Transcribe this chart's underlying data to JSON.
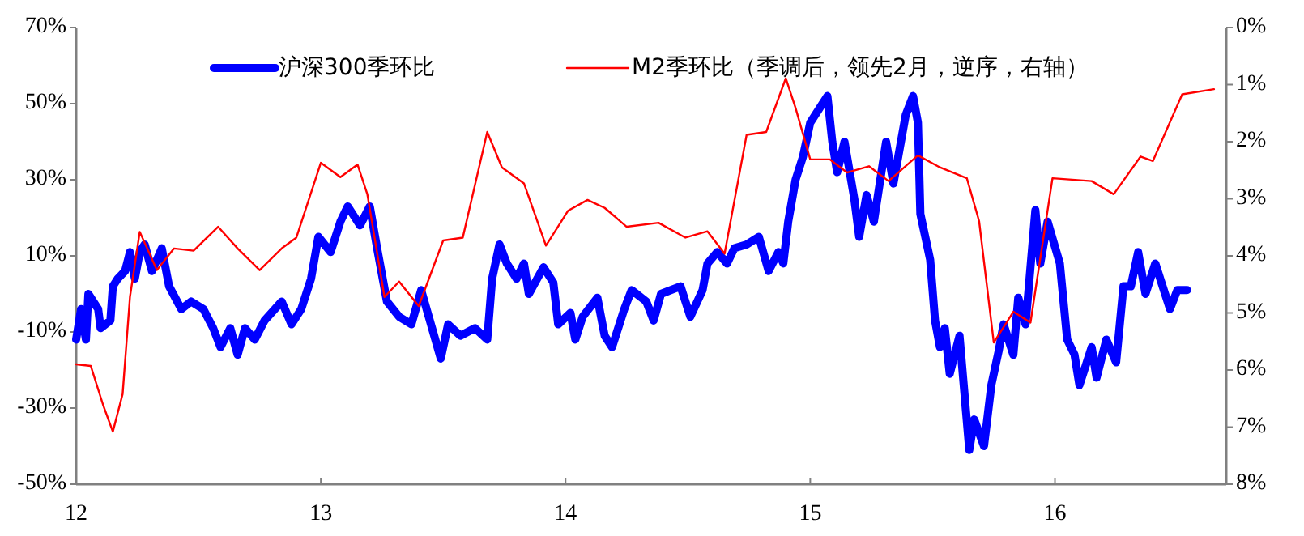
{
  "chart_data": {
    "type": "line",
    "legend": "top",
    "line_style": "solid",
    "xlim": [
      12,
      16.7
    ],
    "xticks": [
      12,
      13,
      14,
      15,
      16
    ],
    "ylim": [
      -50,
      70
    ],
    "yticks": [
      {
        "value": -50,
        "label": "-50%"
      },
      {
        "value": -30,
        "label": "-30%"
      },
      {
        "value": -10,
        "label": "-10%"
      },
      {
        "value": 10,
        "label": "10%"
      },
      {
        "value": 30,
        "label": "30%"
      },
      {
        "value": 50,
        "label": "50%"
      },
      {
        "value": 70,
        "label": "70%"
      }
    ],
    "y2lim": [
      8,
      0
    ],
    "y2ticks": [
      {
        "value": 0,
        "label": "0%"
      },
      {
        "value": 1,
        "label": "1%"
      },
      {
        "value": 2,
        "label": "2%"
      },
      {
        "value": 3,
        "label": "3%"
      },
      {
        "value": 4,
        "label": "4%"
      },
      {
        "value": 5,
        "label": "5%"
      },
      {
        "value": 6,
        "label": "6%"
      },
      {
        "value": 7,
        "label": "7%"
      },
      {
        "value": 8,
        "label": "8%"
      }
    ],
    "series": [
      {
        "name": "沪深300季环比",
        "color": "#0000ff",
        "x": [
          12.0,
          12.02,
          12.04,
          12.05,
          12.09,
          12.1,
          12.14,
          12.15,
          12.17,
          12.2,
          12.22,
          12.24,
          12.26,
          12.28,
          12.31,
          12.35,
          12.38,
          12.43,
          12.47,
          12.52,
          12.56,
          12.59,
          12.63,
          12.66,
          12.69,
          12.73,
          12.77,
          12.84,
          12.88,
          12.92,
          12.96,
          12.99,
          13.04,
          13.08,
          13.11,
          13.16,
          13.2,
          13.23,
          13.27,
          13.32,
          13.37,
          13.41,
          13.45,
          13.49,
          13.52,
          13.57,
          13.63,
          13.68,
          13.7,
          13.73,
          13.76,
          13.8,
          13.83,
          13.85,
          13.91,
          13.95,
          13.97,
          14.02,
          14.04,
          14.07,
          14.13,
          14.16,
          14.19,
          14.24,
          14.27,
          14.33,
          14.36,
          14.39,
          14.47,
          14.51,
          14.56,
          14.58,
          14.62,
          14.66,
          14.69,
          14.74,
          14.79,
          14.83,
          14.87,
          14.89,
          14.91,
          14.94,
          14.97,
          15.0,
          15.04,
          15.07,
          15.09,
          15.11,
          15.14,
          15.18,
          15.2,
          15.23,
          15.26,
          15.31,
          15.34,
          15.39,
          15.42,
          15.44,
          15.45,
          15.49,
          15.51,
          15.53,
          15.55,
          15.57,
          15.61,
          15.63,
          15.65,
          15.67,
          15.71,
          15.74,
          15.77,
          15.79,
          15.83,
          15.85,
          15.88,
          15.92,
          15.94,
          15.97,
          16.02,
          16.05,
          16.08,
          16.1,
          16.15,
          16.17,
          16.21,
          16.25,
          16.28,
          16.31,
          16.34,
          16.37,
          16.41,
          16.44,
          16.47,
          16.5,
          16.54
        ],
        "values": [
          -12,
          -4,
          -12,
          0,
          -4,
          -9,
          -7,
          2,
          4,
          6,
          11,
          4,
          11,
          13,
          6,
          12,
          2,
          -4,
          -2,
          -4,
          -9,
          -14,
          -9,
          -16,
          -9,
          -12,
          -7,
          -2,
          -8,
          -4,
          4,
          15,
          11,
          19,
          23,
          18,
          23,
          12,
          -2,
          -6,
          -8,
          1,
          -8,
          -17,
          -8,
          -11,
          -9,
          -12,
          4,
          13,
          8,
          4,
          8,
          0,
          7,
          3,
          -8,
          -5,
          -12,
          -6,
          -1,
          -11,
          -14,
          -4,
          1,
          -2,
          -7,
          0,
          2,
          -6,
          1,
          8,
          11,
          8,
          12,
          13,
          15,
          6,
          11,
          8,
          19,
          30,
          36,
          45,
          49,
          52,
          40,
          32,
          40,
          25,
          15,
          26,
          19,
          40,
          29,
          47,
          52,
          45,
          21,
          9,
          -7,
          -14,
          -9,
          -21,
          -11,
          -26,
          -41,
          -33,
          -40,
          -24,
          -15,
          -8,
          -16,
          -1,
          -8,
          22,
          8,
          19,
          8,
          -12,
          -16,
          -24,
          -14,
          -22,
          -12,
          -18,
          2,
          2,
          11,
          0,
          8,
          2,
          -4,
          1,
          1
        ]
      },
      {
        "name": "M2季环比（季调后，领先2月，逆序，右轴）",
        "color": "#ff0000",
        "axis": "y2",
        "x": [
          12.0,
          12.06,
          12.11,
          12.15,
          12.19,
          12.22,
          12.26,
          12.3,
          12.33,
          12.4,
          12.48,
          12.58,
          12.66,
          12.75,
          12.84,
          12.9,
          13.0,
          13.08,
          13.15,
          13.19,
          13.26,
          13.32,
          13.4,
          13.5,
          13.58,
          13.68,
          13.74,
          13.83,
          13.92,
          14.01,
          14.09,
          14.16,
          14.25,
          14.38,
          14.49,
          14.58,
          14.65,
          14.74,
          14.82,
          14.9,
          14.94,
          15.0,
          15.08,
          15.15,
          15.24,
          15.32,
          15.44,
          15.53,
          15.64,
          15.69,
          15.75,
          15.83,
          15.9,
          15.99,
          16.15,
          16.24,
          16.35,
          16.4,
          16.52,
          16.65
        ],
        "values": [
          5.9,
          5.93,
          6.61,
          7.08,
          6.42,
          4.72,
          3.58,
          3.96,
          4.25,
          3.87,
          3.91,
          3.49,
          3.87,
          4.25,
          3.87,
          3.68,
          2.37,
          2.62,
          2.4,
          2.92,
          4.72,
          4.45,
          4.88,
          3.73,
          3.68,
          1.83,
          2.45,
          2.73,
          3.82,
          3.21,
          3.02,
          3.16,
          3.49,
          3.42,
          3.68,
          3.57,
          3.96,
          1.88,
          1.83,
          0.89,
          1.41,
          2.31,
          2.31,
          2.54,
          2.43,
          2.69,
          2.24,
          2.45,
          2.64,
          3.39,
          5.52,
          4.98,
          5.17,
          2.64,
          2.69,
          2.92,
          2.26,
          2.34,
          1.17,
          1.08
        ]
      }
    ]
  }
}
